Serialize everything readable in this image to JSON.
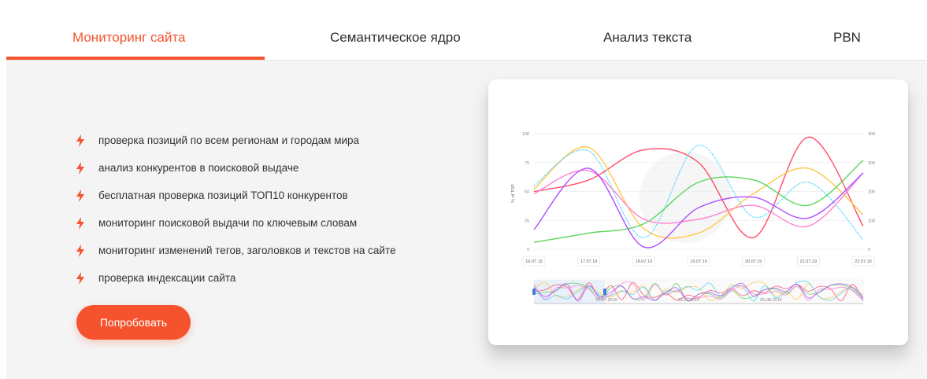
{
  "tabs": [
    {
      "label": "Мониторинг сайта",
      "active": true
    },
    {
      "label": "Семантическое ядро",
      "active": false
    },
    {
      "label": "Анализ текста",
      "active": false
    },
    {
      "label": "PBN",
      "active": false
    }
  ],
  "features": [
    {
      "text": "проверка позиций по всем регионам и городам мира",
      "icon": "bolt-icon"
    },
    {
      "text": "анализ конкурентов в поисковой выдаче",
      "icon": "bolt-icon"
    },
    {
      "text": "бесплатная проверка позиций ТОП10 конкурентов",
      "icon": "bolt-icon"
    },
    {
      "text": "мониторинг поисковой выдачи по ключевым словам",
      "icon": "bolt-icon"
    },
    {
      "text": "мониторинг изменений тегов, заголовков и текстов на сайте",
      "icon": "bolt-icon"
    },
    {
      "text": "проверка индексации сайта",
      "icon": "bolt-icon"
    }
  ],
  "cta_label": "Попробовать",
  "colors": {
    "accent": "#f4532d",
    "panel_bg": "#f4f4f4"
  },
  "chart_data": {
    "type": "line",
    "ylabel": "% of TOP",
    "y_left_ticks": [
      "100",
      "75",
      "50",
      "25",
      "0"
    ],
    "y_right_ticks": [
      "400",
      "300",
      "200",
      "100",
      "0"
    ],
    "ylim": [
      0,
      100
    ],
    "x": [
      "16.07.19",
      "17.07.19",
      "18.07.19",
      "19.07.19",
      "20.07.19",
      "21.07.19",
      "22.07.19"
    ],
    "series": [
      {
        "color": "#ff4d6a",
        "dashed": false,
        "values": [
          50,
          60,
          86,
          75,
          10,
          97,
          20
        ]
      },
      {
        "color": "#ffc84a",
        "dashed": false,
        "values": [
          52,
          88,
          18,
          14,
          48,
          70,
          30
        ]
      },
      {
        "color": "#4ad4ff",
        "dashed": true,
        "values": [
          55,
          85,
          10,
          90,
          28,
          58,
          8
        ]
      },
      {
        "color": "#5cd65c",
        "dashed": false,
        "values": [
          6,
          14,
          22,
          58,
          60,
          38,
          77
        ]
      },
      {
        "color": "#ff80d0",
        "dashed": false,
        "values": [
          48,
          68,
          26,
          26,
          38,
          20,
          66
        ]
      },
      {
        "color": "#b04cff",
        "dashed": false,
        "values": [
          17,
          70,
          2,
          36,
          45,
          27,
          66
        ]
      }
    ],
    "navigator_labels": [
      "22.07.2019",
      "28.07.2019",
      "05.08.2019"
    ],
    "grid": true
  }
}
